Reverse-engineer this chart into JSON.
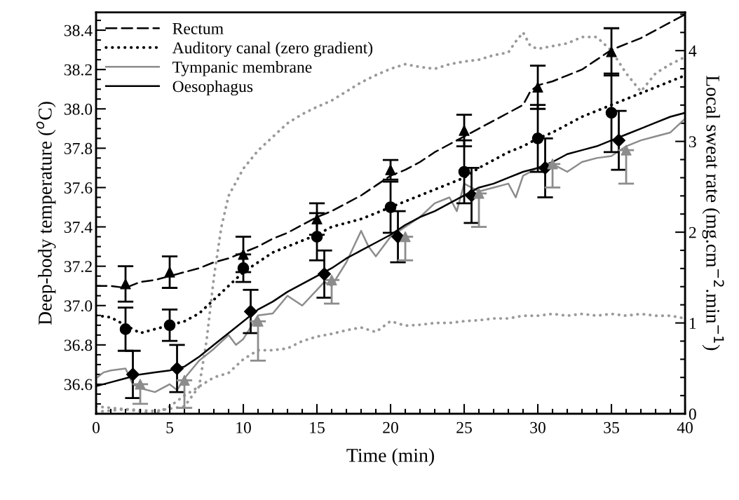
{
  "chart_data": {
    "type": "line",
    "xlabel": "Time (min)",
    "ylabel": "Deep-body temperature ($^{o}$C)",
    "y2label": "Local sweat rate (mg.cm$^{−2}$.min$^{−1}$)",
    "xlim": [
      0,
      40
    ],
    "ylim": [
      36.45,
      38.49
    ],
    "y2lim": [
      0,
      4.42
    ],
    "xticks": [
      0,
      {
        "value": 1,
        "label": null
      },
      {
        "value": 2,
        "label": null
      },
      {
        "value": 3,
        "label": null
      },
      {
        "value": 4,
        "label": null
      },
      5,
      {
        "value": 6,
        "label": null
      },
      {
        "value": 7,
        "label": null
      },
      {
        "value": 8,
        "label": null
      },
      {
        "value": 9,
        "label": null
      },
      10,
      {
        "value": 11,
        "label": null
      },
      {
        "value": 12,
        "label": null
      },
      {
        "value": 13,
        "label": null
      },
      {
        "value": 14,
        "label": null
      },
      15,
      {
        "value": 16,
        "label": null
      },
      {
        "value": 17,
        "label": null
      },
      {
        "value": 18,
        "label": null
      },
      {
        "value": 19,
        "label": null
      },
      20,
      {
        "value": 21,
        "label": null
      },
      {
        "value": 22,
        "label": null
      },
      {
        "value": 23,
        "label": null
      },
      {
        "value": 24,
        "label": null
      },
      25,
      {
        "value": 26,
        "label": null
      },
      {
        "value": 27,
        "label": null
      },
      {
        "value": 28,
        "label": null
      },
      {
        "value": 29,
        "label": null
      },
      30,
      {
        "value": 31,
        "label": null
      },
      {
        "value": 32,
        "label": null
      },
      {
        "value": 33,
        "label": null
      },
      {
        "value": 34,
        "label": null
      },
      35,
      {
        "value": 36,
        "label": null
      },
      {
        "value": 37,
        "label": null
      },
      {
        "value": 38,
        "label": null
      },
      {
        "value": 39,
        "label": null
      },
      40
    ],
    "yticks": [
      {
        "value": 36.5,
        "label": null
      },
      {
        "value": 36.55,
        "label": null
      },
      {
        "value": 36.6,
        "label": "36.6"
      },
      {
        "value": 36.65,
        "label": null
      },
      {
        "value": 36.7,
        "label": null
      },
      {
        "value": 36.75,
        "label": null
      },
      {
        "value": 36.8,
        "label": "36.8"
      },
      {
        "value": 36.85,
        "label": null
      },
      {
        "value": 36.9,
        "label": null
      },
      {
        "value": 36.95,
        "label": null
      },
      {
        "value": 37.0,
        "label": "37.0"
      },
      {
        "value": 37.05,
        "label": null
      },
      {
        "value": 37.1,
        "label": null
      },
      {
        "value": 37.15,
        "label": null
      },
      {
        "value": 37.2,
        "label": "37.2"
      },
      {
        "value": 37.25,
        "label": null
      },
      {
        "value": 37.3,
        "label": null
      },
      {
        "value": 37.35,
        "label": null
      },
      {
        "value": 37.4,
        "label": "37.4"
      },
      {
        "value": 37.45,
        "label": null
      },
      {
        "value": 37.5,
        "label": null
      },
      {
        "value": 37.55,
        "label": null
      },
      {
        "value": 37.6,
        "label": "37.6"
      },
      {
        "value": 37.65,
        "label": null
      },
      {
        "value": 37.7,
        "label": null
      },
      {
        "value": 37.75,
        "label": null
      },
      {
        "value": 37.8,
        "label": "37.8"
      },
      {
        "value": 37.85,
        "label": null
      },
      {
        "value": 37.9,
        "label": null
      },
      {
        "value": 37.95,
        "label": null
      },
      {
        "value": 38.0,
        "label": "38.0"
      },
      {
        "value": 38.05,
        "label": null
      },
      {
        "value": 38.1,
        "label": null
      },
      {
        "value": 38.15,
        "label": null
      },
      {
        "value": 38.2,
        "label": "38.2"
      },
      {
        "value": 38.25,
        "label": null
      },
      {
        "value": 38.3,
        "label": null
      },
      {
        "value": 38.35,
        "label": null
      },
      {
        "value": 38.4,
        "label": "38.4"
      },
      {
        "value": 38.45,
        "label": null
      }
    ],
    "y2ticks": [
      0,
      {
        "value": 0.2,
        "label": null
      },
      {
        "value": 0.4,
        "label": null
      },
      {
        "value": 0.6,
        "label": null
      },
      {
        "value": 0.8,
        "label": null
      },
      1,
      {
        "value": 1.2,
        "label": null
      },
      {
        "value": 1.4,
        "label": null
      },
      {
        "value": 1.6,
        "label": null
      },
      {
        "value": 1.8,
        "label": null
      },
      2,
      {
        "value": 2.2,
        "label": null
      },
      {
        "value": 2.4,
        "label": null
      },
      {
        "value": 2.6,
        "label": null
      },
      {
        "value": 2.8,
        "label": null
      },
      3,
      {
        "value": 3.2,
        "label": null
      },
      {
        "value": 3.4,
        "label": null
      },
      {
        "value": 3.6,
        "label": null
      },
      {
        "value": 3.8,
        "label": null
      },
      4,
      {
        "value": 4.2,
        "label": null
      },
      {
        "value": 4.4,
        "label": null
      }
    ],
    "legend": "top left",
    "series": [
      {
        "name": "Rectum",
        "line_style": "dashed",
        "color": "#000000",
        "x": [
          0,
          1,
          2,
          3,
          4,
          5,
          6,
          7,
          8,
          9,
          10,
          11,
          12,
          13,
          14,
          15,
          16,
          17,
          18,
          19,
          20,
          21,
          22,
          23,
          24,
          25,
          26,
          27,
          28,
          29,
          29.5,
          30,
          31,
          32,
          33,
          34,
          35,
          36,
          37,
          38,
          39,
          40
        ],
        "values": [
          37.1,
          37.1,
          37.09,
          37.12,
          37.13,
          37.15,
          37.17,
          37.19,
          37.22,
          37.24,
          37.27,
          37.3,
          37.34,
          37.37,
          37.41,
          37.45,
          37.48,
          37.52,
          37.56,
          37.61,
          37.66,
          37.69,
          37.73,
          37.78,
          37.82,
          37.86,
          37.9,
          37.94,
          37.98,
          38.02,
          38.09,
          38.12,
          38.14,
          38.17,
          38.2,
          38.25,
          38.3,
          38.33,
          38.36,
          38.4,
          38.44,
          38.48
        ]
      },
      {
        "name": "Auditory canal (zero gradient)",
        "line_style": "dotted",
        "color": "#000000",
        "x": [
          0,
          1,
          2,
          3,
          4,
          5,
          6,
          7,
          8,
          9,
          10,
          11,
          12,
          13,
          14,
          15,
          16,
          17,
          18,
          19,
          20,
          21,
          22,
          23,
          24,
          25,
          26,
          27,
          28,
          29,
          30,
          31,
          32,
          33,
          34,
          35,
          36,
          37,
          38,
          39,
          40
        ],
        "values": [
          36.95,
          36.94,
          36.9,
          36.86,
          36.88,
          36.9,
          36.92,
          36.96,
          37.03,
          37.1,
          37.17,
          37.22,
          37.27,
          37.3,
          37.33,
          37.36,
          37.4,
          37.42,
          37.44,
          37.47,
          37.5,
          37.53,
          37.56,
          37.59,
          37.62,
          37.65,
          37.7,
          37.74,
          37.78,
          37.81,
          37.85,
          37.88,
          37.92,
          37.96,
          37.99,
          38.02,
          38.05,
          38.08,
          38.11,
          38.14,
          38.17
        ]
      },
      {
        "name": "Tympanic membrane",
        "line_style": "solid",
        "color": "#8c8c8c",
        "x": [
          0,
          0.5,
          1,
          2,
          2.5,
          3,
          4,
          5,
          5.5,
          6,
          7,
          8,
          9,
          9.5,
          10,
          11,
          12,
          13,
          14,
          15,
          15.5,
          16,
          17,
          18,
          18.5,
          19,
          20,
          21,
          22,
          23,
          24,
          24.5,
          25,
          26,
          27,
          28,
          28.5,
          29,
          30,
          30.5,
          31,
          32,
          33,
          34,
          35,
          36,
          37,
          38,
          39,
          40
        ],
        "values": [
          36.63,
          36.66,
          36.67,
          36.68,
          36.6,
          36.58,
          36.56,
          36.6,
          36.57,
          36.63,
          36.72,
          36.78,
          36.85,
          36.8,
          36.83,
          36.95,
          36.96,
          37.05,
          37.0,
          37.08,
          37.12,
          37.1,
          37.22,
          37.38,
          37.3,
          37.25,
          37.35,
          37.4,
          37.45,
          37.52,
          37.55,
          37.48,
          37.62,
          37.58,
          37.6,
          37.62,
          37.55,
          37.66,
          37.7,
          37.68,
          37.72,
          37.68,
          37.73,
          37.75,
          37.76,
          37.81,
          37.84,
          37.86,
          37.88,
          37.95
        ]
      },
      {
        "name": "Oesophagus",
        "line_style": "solid",
        "color": "#000000",
        "x": [
          0,
          1,
          2,
          3,
          4,
          5,
          6,
          7,
          8,
          9,
          10,
          11,
          12,
          13,
          14,
          15,
          16,
          17,
          18,
          19,
          20,
          21,
          22,
          23,
          24,
          25,
          26,
          27,
          28,
          29,
          30,
          31,
          32,
          33,
          34,
          35,
          36,
          37,
          38,
          39,
          40
        ],
        "values": [
          36.59,
          36.61,
          36.63,
          36.65,
          36.66,
          36.67,
          36.69,
          36.74,
          36.8,
          36.86,
          36.92,
          36.98,
          37.02,
          37.07,
          37.11,
          37.15,
          37.19,
          37.24,
          37.28,
          37.32,
          37.36,
          37.41,
          37.45,
          37.48,
          37.52,
          37.56,
          37.6,
          37.62,
          37.65,
          37.68,
          37.7,
          37.73,
          37.77,
          37.79,
          37.81,
          37.84,
          37.87,
          37.9,
          37.93,
          37.96,
          37.98
        ]
      },
      {
        "type": "line",
        "axis": "y2",
        "line_style": "dotted",
        "color": "#9a9a9a",
        "x": [
          0,
          2,
          4,
          6,
          7,
          7.5,
          8,
          8.5,
          9,
          10,
          11,
          12,
          13,
          14,
          15,
          16,
          17,
          18,
          19,
          20,
          21,
          22,
          23,
          24,
          25,
          26,
          27,
          28,
          28.5,
          29,
          29.5,
          30,
          31,
          32,
          33,
          34,
          35,
          36,
          37,
          38,
          39,
          40
        ],
        "values": [
          0.08,
          0.05,
          0.03,
          0.08,
          0.3,
          0.8,
          1.5,
          2.05,
          2.4,
          2.7,
          2.9,
          3.05,
          3.2,
          3.3,
          3.38,
          3.45,
          3.55,
          3.65,
          3.73,
          3.8,
          3.85,
          3.82,
          3.8,
          3.85,
          3.88,
          3.9,
          3.95,
          3.98,
          4.1,
          4.2,
          4.05,
          4.02,
          4.05,
          4.08,
          4.15,
          4.15,
          4.0,
          3.75,
          3.55,
          3.75,
          3.85,
          3.93
        ]
      },
      {
        "type": "line",
        "axis": "y2",
        "line_style": "dotted",
        "color": "#9a9a9a",
        "x": [
          0,
          2,
          4,
          5,
          6,
          7,
          8,
          9,
          10,
          11,
          12,
          13,
          14,
          15,
          16,
          17,
          18,
          19,
          20,
          21,
          22,
          23,
          24,
          25,
          26,
          27,
          28,
          29,
          30,
          31,
          32,
          33,
          34,
          35,
          36,
          37,
          38,
          39,
          40
        ],
        "values": [
          0.02,
          0.05,
          0.0,
          0.08,
          0.2,
          0.3,
          0.4,
          0.45,
          0.6,
          0.7,
          0.7,
          0.72,
          0.8,
          0.85,
          0.88,
          0.92,
          0.95,
          0.9,
          1.02,
          0.97,
          0.98,
          1.0,
          1.0,
          1.02,
          1.03,
          1.05,
          1.05,
          1.08,
          1.08,
          1.1,
          1.08,
          1.1,
          1.08,
          1.1,
          1.08,
          1.1,
          1.08,
          1.08,
          1.05
        ]
      },
      {
        "type": "scatter",
        "marker": "triangle",
        "color": "#000000",
        "x": [
          2,
          5,
          10,
          15,
          20,
          25,
          30,
          35
        ],
        "values": [
          37.11,
          37.17,
          37.26,
          37.44,
          37.69,
          37.89,
          38.11,
          38.29
        ],
        "errors": [
          0.09,
          0.08,
          0.09,
          0.08,
          0.05,
          0.08,
          0.11,
          0.12
        ]
      },
      {
        "type": "scatter",
        "marker": "circle",
        "color": "#000000",
        "x": [
          2,
          5,
          10,
          15,
          20,
          25,
          30,
          35
        ],
        "values": [
          36.88,
          36.9,
          37.19,
          37.35,
          37.5,
          37.68,
          37.85,
          37.98
        ],
        "errors": [
          0.11,
          0.08,
          0.07,
          0.12,
          0.13,
          0.16,
          0.17,
          0.2
        ]
      },
      {
        "type": "scatter",
        "marker": "diamond",
        "color": "#000000",
        "x": [
          2.5,
          5.5,
          10.5,
          15.5,
          20.5,
          25.5,
          30.5,
          35.5
        ],
        "values": [
          36.65,
          36.68,
          36.97,
          37.16,
          37.35,
          37.56,
          37.7,
          37.84
        ],
        "errors": [
          0.12,
          0.12,
          0.11,
          0.12,
          0.13,
          0.14,
          0.15,
          0.15
        ]
      },
      {
        "type": "scatter",
        "marker": "triangle",
        "color": "#8c8c8c",
        "x": [
          3,
          6,
          11,
          16,
          21,
          26,
          31,
          36
        ],
        "values": [
          36.6,
          36.62,
          36.92,
          37.13,
          37.35,
          37.57,
          37.72,
          37.79
        ],
        "errors": [
          [
            36.5,
            36.6
          ],
          [
            36.48,
            36.62
          ],
          [
            36.72,
            36.92
          ],
          [
            37.01,
            37.13
          ],
          [
            37.23,
            37.35
          ],
          [
            37.4,
            37.57
          ],
          [
            37.6,
            37.72
          ],
          [
            37.62,
            37.79
          ]
        ]
      }
    ]
  }
}
